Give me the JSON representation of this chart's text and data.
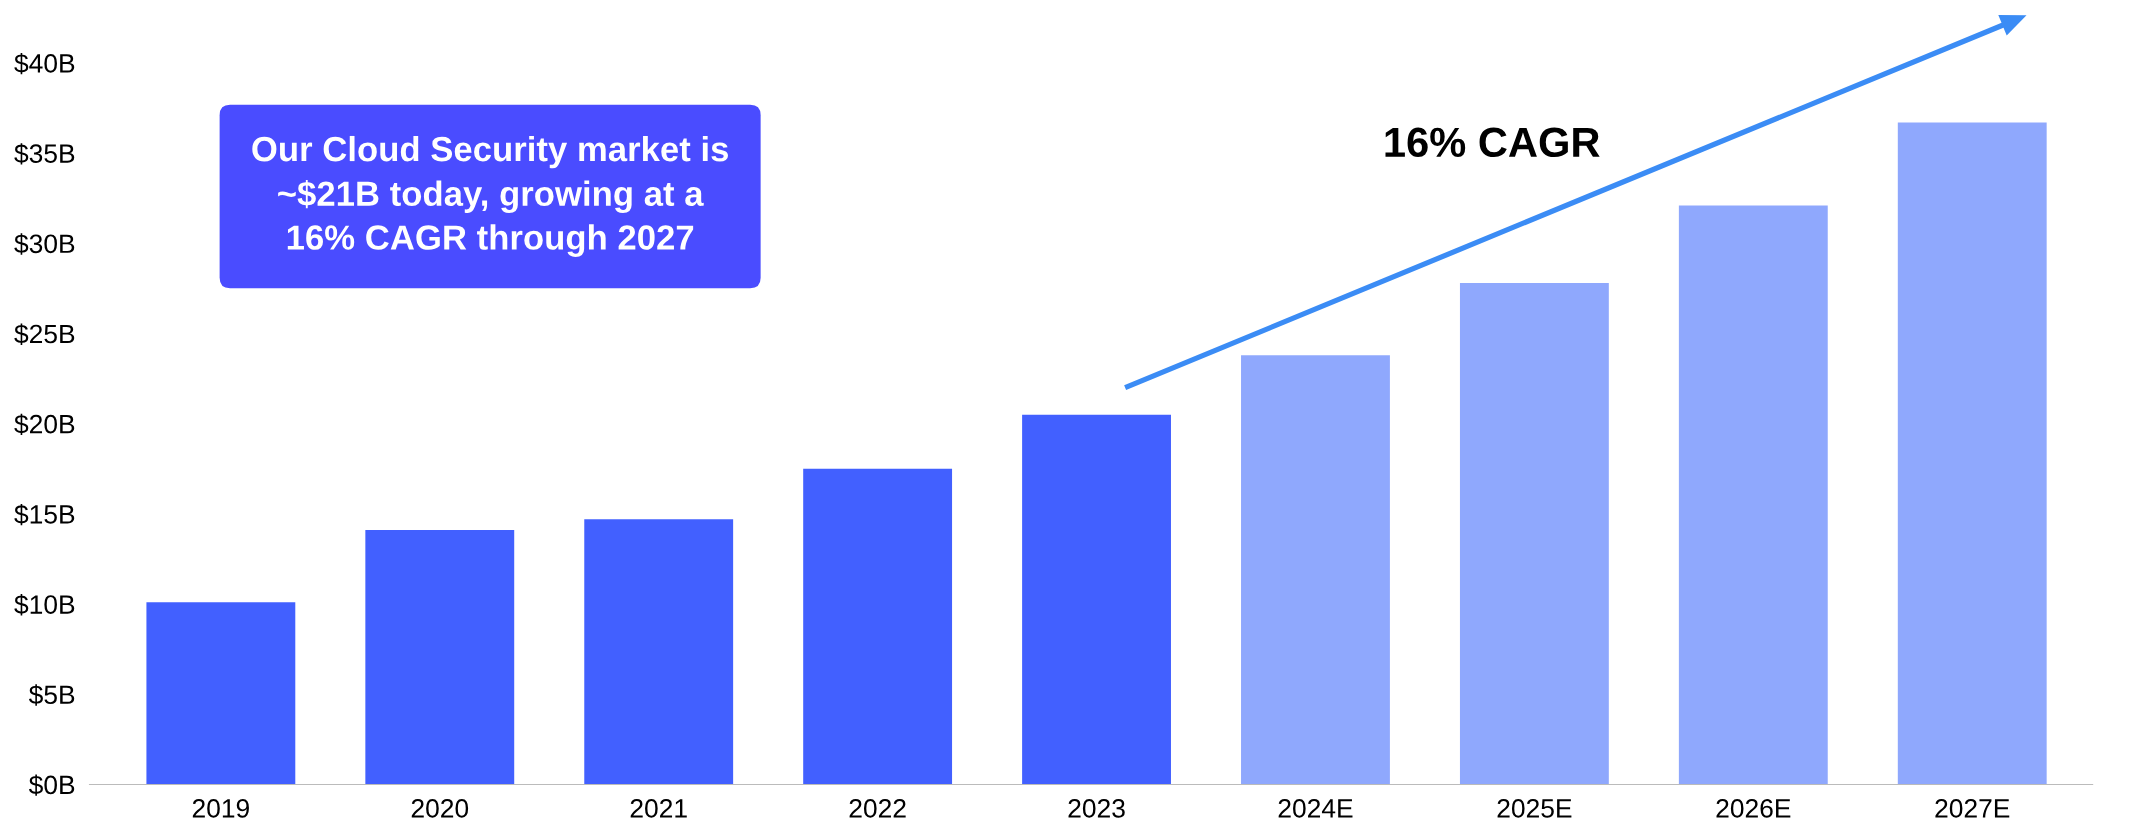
{
  "chart_data": {
    "type": "bar",
    "categories": [
      "2019",
      "2020",
      "2021",
      "2022",
      "2023",
      "2024E",
      "2025E",
      "2026E",
      "2027E"
    ],
    "values": [
      10.1,
      14.1,
      14.7,
      17.5,
      20.5,
      23.8,
      27.8,
      32.1,
      36.7
    ],
    "colors": [
      "#4260ff",
      "#4260ff",
      "#4260ff",
      "#4260ff",
      "#4260ff",
      "#8fa8fd",
      "#8fa8fd",
      "#8fa8fd",
      "#8fa8fd"
    ],
    "ylim": [
      0,
      40
    ],
    "yticks": [
      {
        "value": 0,
        "label": "$0B"
      },
      {
        "value": 5,
        "label": "$5B"
      },
      {
        "value": 10,
        "label": "$10B"
      },
      {
        "value": 15,
        "label": "$15B"
      },
      {
        "value": 20,
        "label": "$20B"
      },
      {
        "value": 25,
        "label": "$25B"
      },
      {
        "value": 30,
        "label": "$30B"
      },
      {
        "value": 35,
        "label": "$35B"
      },
      {
        "value": 40,
        "label": "$40B"
      }
    ],
    "grid": false,
    "annotations": [
      "Our Cloud Security market is\n~$21B today, growing at a\n16% CAGR through 2027",
      "16% CAGR"
    ]
  }
}
